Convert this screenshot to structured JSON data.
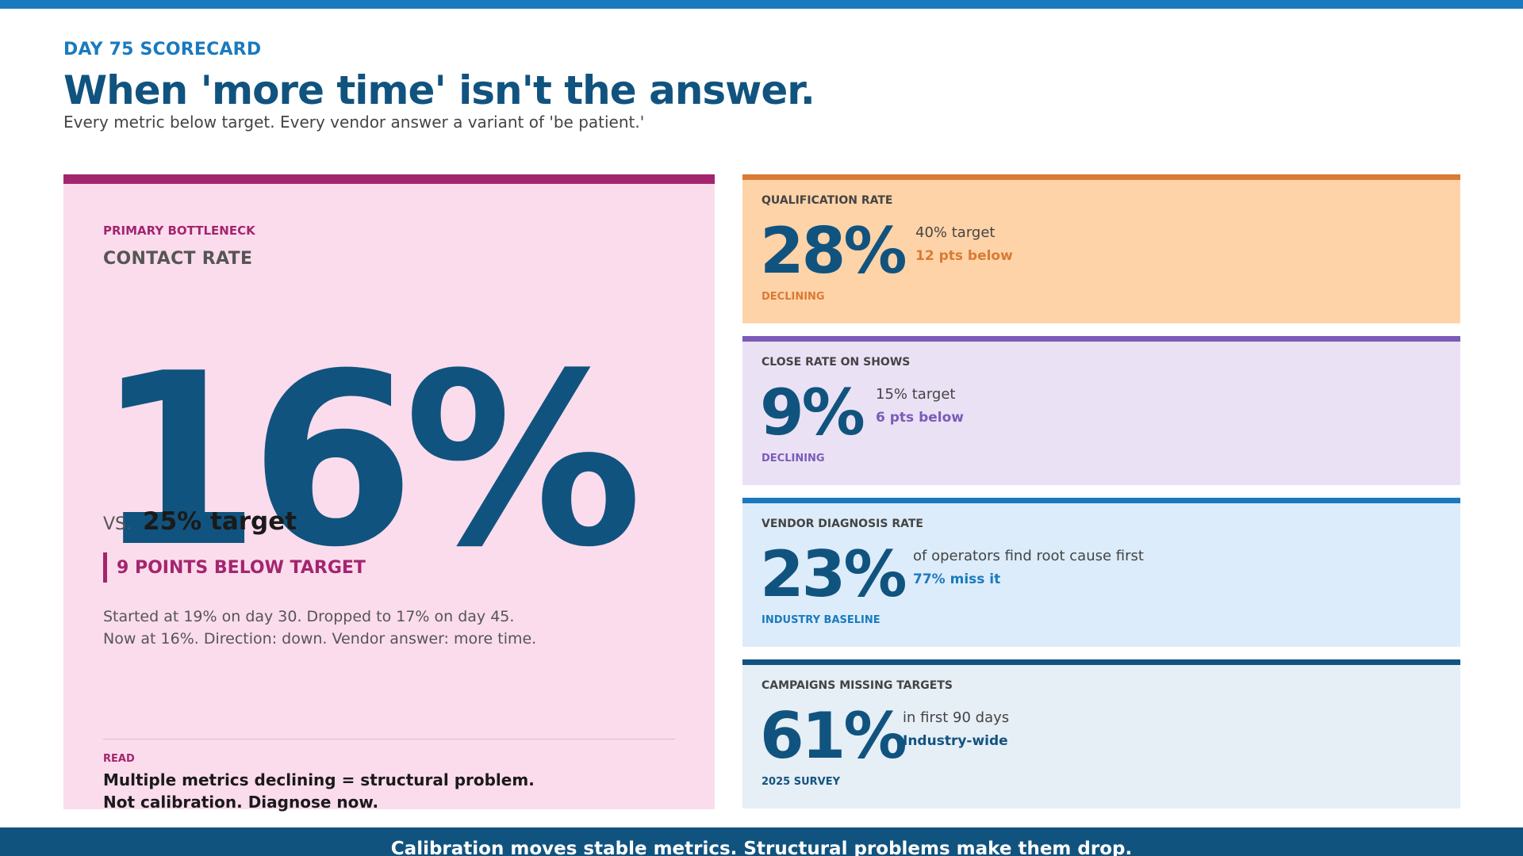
{
  "header": {
    "eyebrow": "DAY 75 SCORECARD",
    "headline": "When 'more time' isn't the answer.",
    "subhead": "Every metric below target. Every vendor answer a variant of 'be patient.'"
  },
  "primary": {
    "kicker": "PRIMARY BOTTLENECK",
    "metric_name": "CONTACT RATE",
    "value": "16%",
    "vs_label": "VS.",
    "target": "25% target",
    "below": "9 POINTS BELOW TARGET",
    "story_line1": "Started at 19% on day 30. Dropped to 17% on day 45.",
    "story_line2": "Now at 16%. Direction: down. Vendor answer: more time.",
    "read_label": "READ",
    "read_line1": "Multiple metrics declining = structural problem.",
    "read_line2": "Not calibration. Diagnose now.",
    "accent": "#a3256f"
  },
  "metrics": [
    {
      "label": "QUALIFICATION RATE",
      "value": "28%",
      "context": "40% target",
      "delta": "12 pts below",
      "trend": "DECLINING",
      "accent": "#d97a35"
    },
    {
      "label": "CLOSE RATE ON SHOWS",
      "value": "9%",
      "context": "15% target",
      "delta": "6 pts below",
      "trend": "DECLINING",
      "accent": "#7a5cb8"
    },
    {
      "label": "VENDOR DIAGNOSIS RATE",
      "value": "23%",
      "context": "of operators find root cause first",
      "delta": "77% miss it",
      "trend": "INDUSTRY BASELINE",
      "accent": "#1a7abf"
    },
    {
      "label": "CAMPAIGNS MISSING TARGETS",
      "value": "61%",
      "context": "in first 90 days",
      "delta": "Industry-wide",
      "trend": "2025 SURVEY",
      "accent": "#11537f"
    }
  ],
  "footer": {
    "text": "Calibration moves stable metrics. Structural problems make them drop."
  },
  "colors": {
    "navy": "#11537f",
    "blue": "#1a7abf"
  }
}
